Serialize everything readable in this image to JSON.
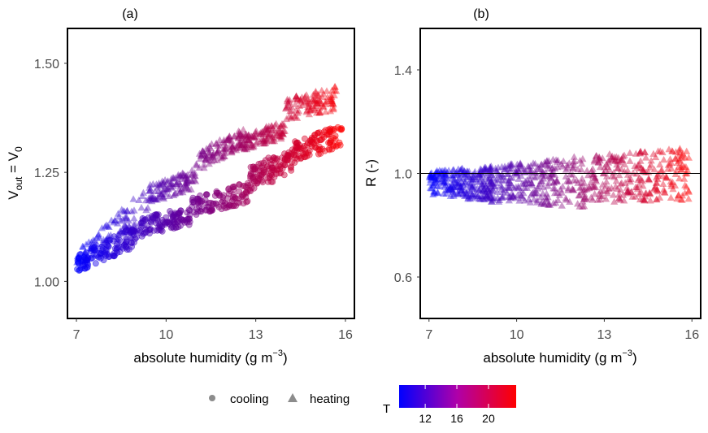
{
  "chart_data": [
    {
      "type": "scatter",
      "panel_tag": "(a)",
      "xlabel": "absolute humidity (g m^-3)",
      "xlabel_main": "absolute humidity (g m",
      "xlabel_sup": "−3",
      "xlabel_close": ")",
      "ylabel": "V_out = V_0",
      "ylabel_parts": {
        "v1": "V",
        "sub1": "out",
        "eq": " = V",
        "sub2": "0"
      },
      "xlim": [
        6.7,
        16.3
      ],
      "ylim": [
        0.915,
        1.58
      ],
      "xticks": [
        7,
        10,
        13,
        16
      ],
      "xtick_labels": [
        "7",
        "10",
        "13",
        "16"
      ],
      "yticks": [
        1.0,
        1.25,
        1.5
      ],
      "ytick_labels": [
        "1.00",
        "1.25",
        "1.50"
      ],
      "grid": false,
      "series": [
        {
          "name": "heating",
          "marker": "triangle",
          "segments": [
            {
              "x_range": [
                7.0,
                9.4
              ],
              "y_start": [
                1.03,
                1.07
              ],
              "y_end": [
                1.12,
                1.22
              ]
            },
            {
              "x_range": [
                9.4,
                11.0
              ],
              "y_start": [
                1.18,
                1.22
              ],
              "y_end": [
                1.21,
                1.26
              ]
            },
            {
              "x_range": [
                11.0,
                12.6
              ],
              "y_start": [
                1.25,
                1.3
              ],
              "y_end": [
                1.31,
                1.35
              ]
            },
            {
              "x_range": [
                12.6,
                14.0
              ],
              "y_start": [
                1.3,
                1.34
              ],
              "y_end": [
                1.33,
                1.37
              ]
            },
            {
              "x_range": [
                14.0,
                15.7
              ],
              "y_start": [
                1.37,
                1.42
              ],
              "y_end": [
                1.39,
                1.45
              ]
            }
          ]
        },
        {
          "name": "cooling",
          "marker": "circle",
          "segments": [
            {
              "x_range": [
                7.0,
                9.0
              ],
              "y_start": [
                1.02,
                1.06
              ],
              "y_end": [
                1.08,
                1.13
              ]
            },
            {
              "x_range": [
                9.0,
                10.8
              ],
              "y_start": [
                1.1,
                1.15
              ],
              "y_end": [
                1.13,
                1.17
              ]
            },
            {
              "x_range": [
                10.8,
                12.8
              ],
              "y_start": [
                1.15,
                1.19
              ],
              "y_end": [
                1.18,
                1.23
              ]
            },
            {
              "x_range": [
                12.8,
                14.2
              ],
              "y_start": [
                1.2,
                1.27
              ],
              "y_end": [
                1.25,
                1.3
              ]
            },
            {
              "x_range": [
                14.2,
                15.9
              ],
              "y_start": [
                1.27,
                1.32
              ],
              "y_end": [
                1.31,
                1.36
              ]
            }
          ]
        }
      ]
    },
    {
      "type": "scatter",
      "panel_tag": "(b)",
      "xlabel": "absolute humidity (g m^-3)",
      "xlabel_main": "absolute humidity (g m",
      "xlabel_sup": "−3",
      "xlabel_close": ")",
      "ylabel": "R (-)",
      "xlim": [
        6.7,
        16.3
      ],
      "ylim": [
        0.44,
        1.56
      ],
      "xticks": [
        7,
        10,
        13,
        16
      ],
      "xtick_labels": [
        "7",
        "10",
        "13",
        "16"
      ],
      "yticks": [
        0.6,
        1.0,
        1.4
      ],
      "ytick_labels": [
        "0.6",
        "1.0",
        "1.4"
      ],
      "hline": 1.0,
      "grid": false,
      "series": [
        {
          "name": "R",
          "marker": "triangle",
          "segments": [
            {
              "x_range": [
                7.0,
                9.2
              ],
              "y_low": [
                0.92,
                0.89
              ],
              "y_high": [
                1.01,
                1.03
              ]
            },
            {
              "x_range": [
                9.2,
                12.4
              ],
              "y_low": [
                0.89,
                0.87
              ],
              "y_high": [
                1.03,
                1.07
              ]
            },
            {
              "x_range": [
                12.4,
                15.9
              ],
              "y_low": [
                0.89,
                0.89
              ],
              "y_high": [
                1.07,
                1.1
              ]
            }
          ]
        }
      ]
    }
  ],
  "legend": {
    "shape_title": "",
    "items": [
      {
        "label": "cooling",
        "marker": "circle"
      },
      {
        "label": "heating",
        "marker": "triangle"
      }
    ],
    "color_title": "T",
    "color_range": [
      8.7,
      23.5
    ],
    "color_ticks": [
      12,
      16,
      20
    ],
    "color_tick_labels": [
      "12",
      "16",
      "20"
    ],
    "color_low": "#0000ff",
    "color_high": "#ff0000",
    "marker_color": "#8c8c8c",
    "placement": "bottom"
  },
  "colors": {
    "low": "#0000ff",
    "high": "#ff0000",
    "hline": "#000000"
  }
}
